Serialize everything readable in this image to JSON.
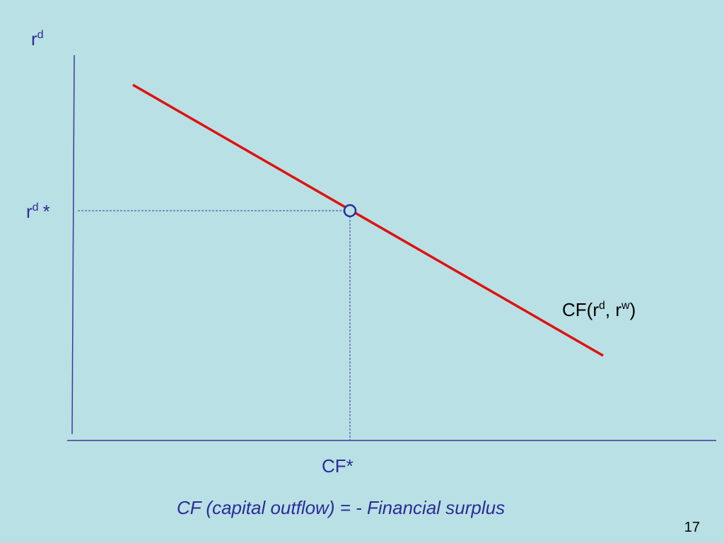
{
  "y_axis_label": {
    "base": "r",
    "sup": "d"
  },
  "equilibrium": {
    "y_label": {
      "base": "r",
      "sup": "d",
      "suffix": "*"
    },
    "x_label": "CF*"
  },
  "curve_label": [
    "CF(r",
    "d",
    ", r",
    "w",
    ")"
  ],
  "caption": "CF (capital outflow) = - Financial surplus",
  "page_number": "17"
}
